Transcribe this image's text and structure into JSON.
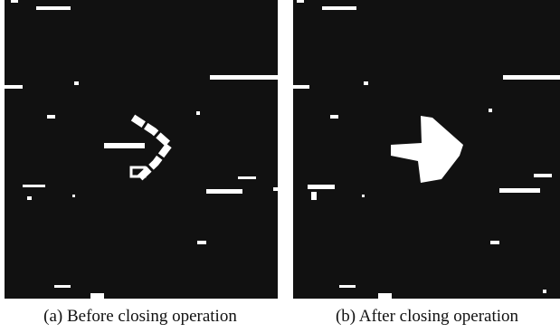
{
  "figures": [
    {
      "caption": "(a) Before closing operation"
    },
    {
      "caption": "(b) After closing operation"
    }
  ]
}
